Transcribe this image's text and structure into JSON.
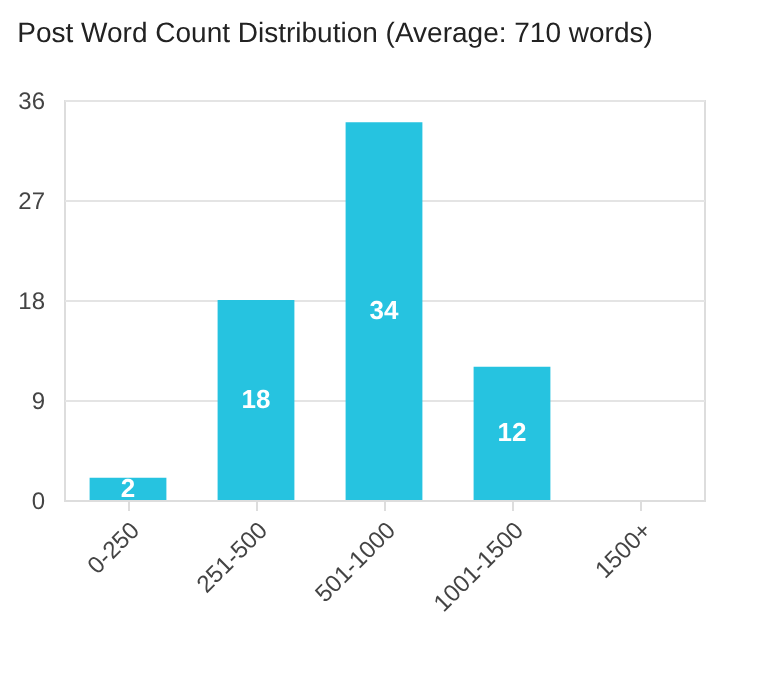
{
  "chart_data": {
    "type": "bar",
    "title": "Post Word Count Distribution (Average: 710 words)",
    "categories": [
      "0-250",
      "251-500",
      "501-1000",
      "1001-1500",
      "1500+"
    ],
    "values": [
      2,
      18,
      34,
      12,
      0
    ],
    "value_labels": [
      "2",
      "18",
      "34",
      "12",
      null
    ],
    "color": "#26c3e0",
    "ylim": [
      0,
      36
    ],
    "yticks": [
      0,
      9,
      18,
      27,
      36
    ],
    "grid": "y"
  }
}
